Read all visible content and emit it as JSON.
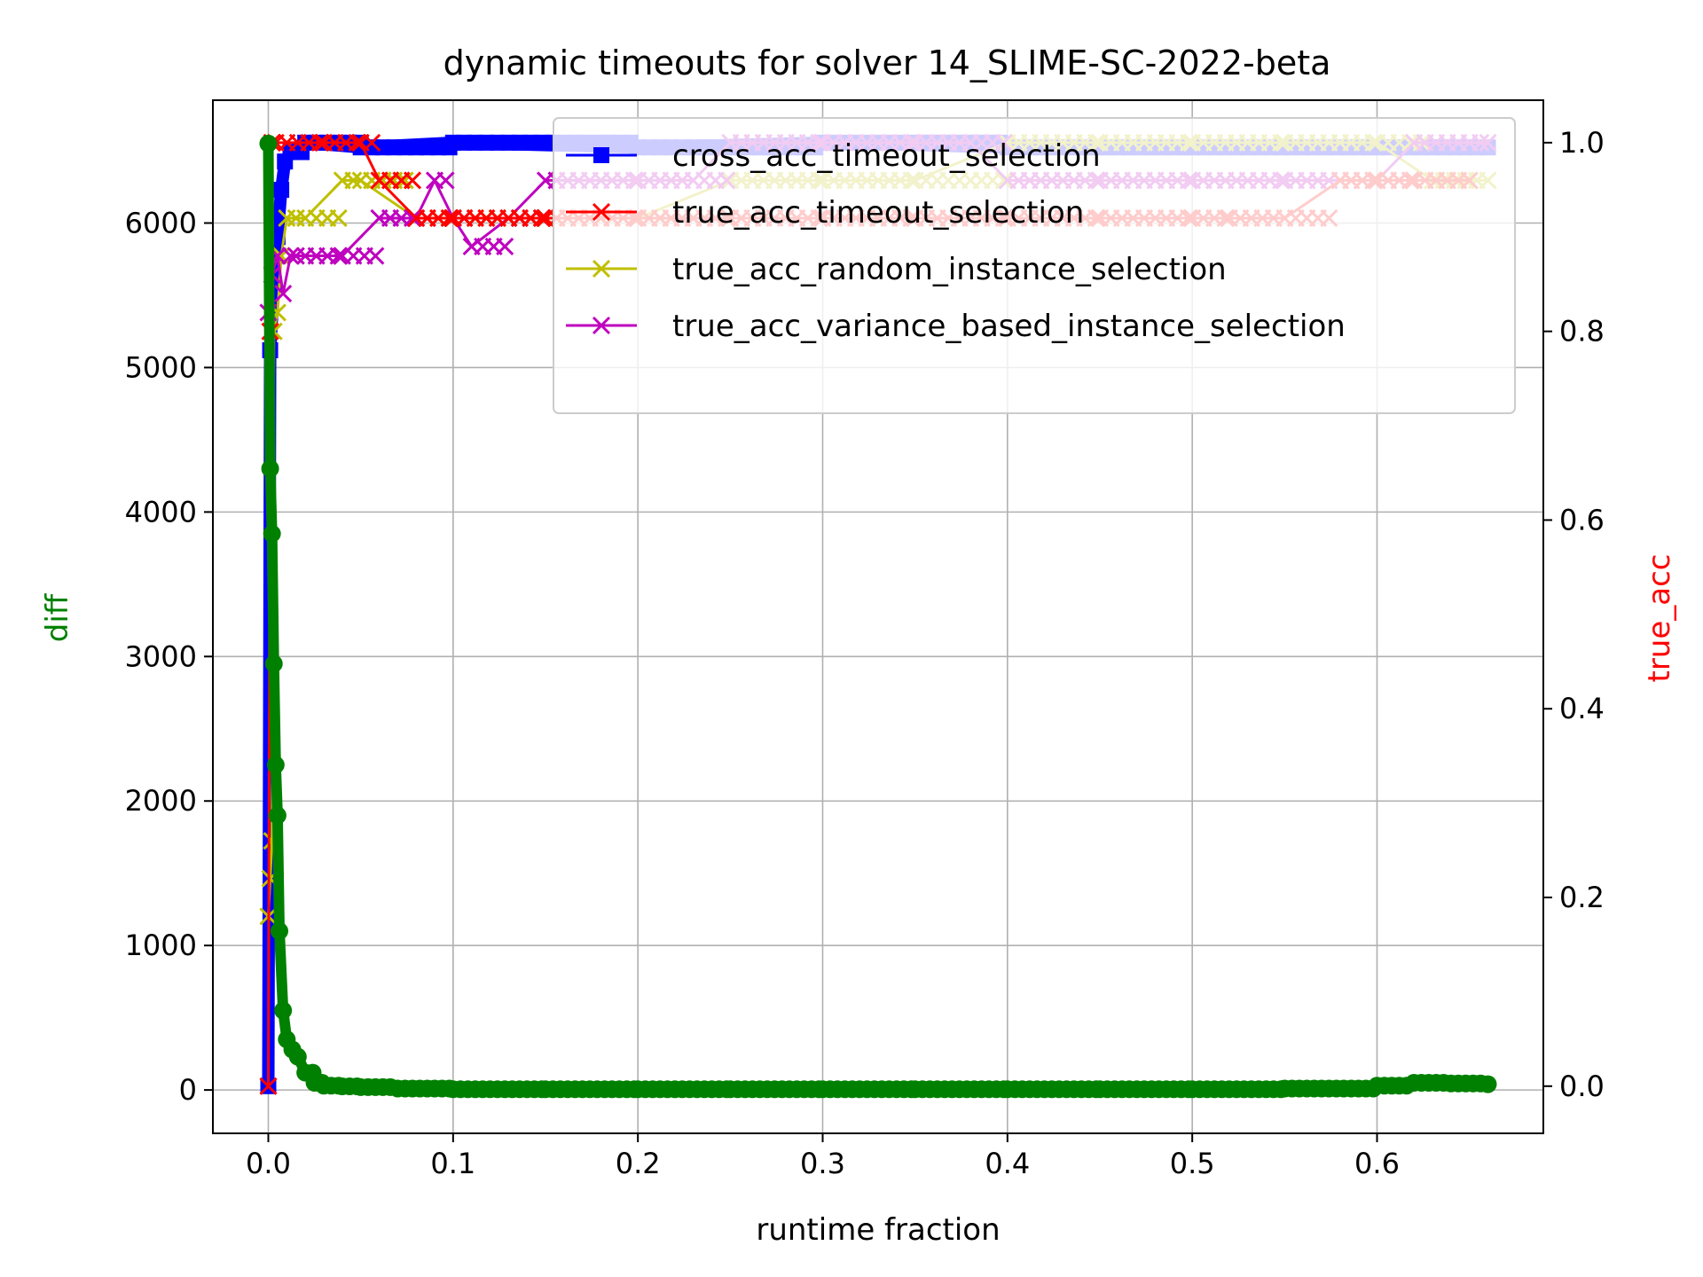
{
  "chart_data": {
    "type": "line",
    "title": "dynamic timeouts for solver 14_SLIME-SC-2022-beta",
    "xlabel": "runtime fraction",
    "ylabel_left": "diff",
    "ylabel_right": "true_acc",
    "xlim": [
      -0.03,
      0.69
    ],
    "ylim_left": [
      -300,
      6850
    ],
    "ylim_right": [
      -0.05,
      1.045
    ],
    "x_ticks": [
      "0.0",
      "0.1",
      "0.2",
      "0.3",
      "0.4",
      "0.5",
      "0.6"
    ],
    "y_left_ticks": [
      "0",
      "1000",
      "2000",
      "3000",
      "4000",
      "5000",
      "6000"
    ],
    "y_right_ticks": [
      "0.0",
      "0.2",
      "0.4",
      "0.6",
      "0.8",
      "1.0"
    ],
    "grid": true,
    "legend": {
      "placement": "upper right",
      "entries": [
        {
          "label": "cross_acc_timeout_selection",
          "color": "#0000ff",
          "marker": "square"
        },
        {
          "label": "true_acc_timeout_selection",
          "color": "#ff0000",
          "marker": "x"
        },
        {
          "label": "true_acc_random_instance_selection",
          "color": "#bfbf00",
          "marker": "x"
        },
        {
          "label": "true_acc_variance_based_instance_selection",
          "color": "#bf00bf",
          "marker": "x"
        }
      ]
    },
    "series": [
      {
        "name": "diff",
        "axis": "left",
        "color": "#008000",
        "marker": "circle",
        "x": [
          0.0,
          0.001,
          0.002,
          0.003,
          0.004,
          0.005,
          0.006,
          0.008,
          0.01,
          0.013,
          0.016,
          0.02,
          0.025,
          0.03,
          0.04,
          0.05,
          0.07,
          0.1,
          0.15,
          0.2,
          0.25,
          0.3,
          0.35,
          0.4,
          0.45,
          0.5,
          0.55,
          0.6,
          0.62,
          0.64,
          0.66
        ],
        "y": [
          6550,
          4300,
          3850,
          2950,
          2250,
          1900,
          1100,
          550,
          350,
          280,
          230,
          120,
          50,
          30,
          25,
          20,
          10,
          5,
          5,
          5,
          5,
          5,
          5,
          5,
          5,
          5,
          10,
          30,
          50,
          45,
          40
        ]
      },
      {
        "name": "cross_acc_timeout_selection",
        "axis": "right",
        "color": "#0000ff",
        "marker": "square",
        "x": [
          0.0,
          0.001,
          0.003,
          0.005,
          0.007,
          0.009,
          0.012,
          0.02,
          0.05,
          0.1,
          0.2,
          0.3,
          0.4,
          0.5,
          0.6,
          0.66
        ],
        "y": [
          0.0,
          0.78,
          0.85,
          0.9,
          0.95,
          0.98,
          0.99,
          1.0,
          0.995,
          1.0,
          0.995,
          1.0,
          0.995,
          0.995,
          0.995,
          0.995
        ]
      },
      {
        "name": "true_acc_timeout_selection",
        "axis": "right",
        "color": "#ff0000",
        "marker": "x",
        "x": [
          0.0,
          0.001,
          0.002,
          0.004,
          0.01,
          0.03,
          0.05,
          0.06,
          0.08,
          0.1,
          0.15,
          0.2,
          0.25,
          0.3,
          0.35,
          0.4,
          0.45,
          0.5,
          0.52,
          0.55,
          0.58,
          0.6,
          0.62,
          0.65
        ],
        "y": [
          0.0,
          0.8,
          1.0,
          1.0,
          1.0,
          1.0,
          1.0,
          0.96,
          0.92,
          0.92,
          0.92,
          0.92,
          0.92,
          0.92,
          0.92,
          0.92,
          0.92,
          0.92,
          0.92,
          0.92,
          0.96,
          0.96,
          0.96,
          0.96
        ]
      },
      {
        "name": "true_acc_random_instance_selection",
        "axis": "right",
        "color": "#bfbf00",
        "marker": "x",
        "x": [
          0.0,
          0.001,
          0.002,
          0.003,
          0.005,
          0.007,
          0.01,
          0.015,
          0.02,
          0.04,
          0.05,
          0.08,
          0.1,
          0.15,
          0.2,
          0.25,
          0.28,
          0.3,
          0.35,
          0.4,
          0.45,
          0.5,
          0.55,
          0.6,
          0.63,
          0.66
        ],
        "y": [
          0.18,
          0.22,
          0.26,
          0.8,
          0.82,
          0.88,
          0.92,
          0.92,
          0.92,
          0.96,
          0.96,
          0.92,
          0.92,
          0.92,
          0.92,
          0.96,
          0.96,
          0.96,
          0.96,
          1.0,
          1.0,
          1.0,
          1.0,
          1.0,
          0.96,
          0.96
        ]
      },
      {
        "name": "true_acc_variance_based_instance_selection",
        "axis": "right",
        "color": "#bf00bf",
        "marker": "x",
        "x": [
          0.0,
          0.002,
          0.005,
          0.008,
          0.012,
          0.015,
          0.02,
          0.04,
          0.06,
          0.08,
          0.09,
          0.1,
          0.11,
          0.13,
          0.15,
          0.2,
          0.23,
          0.25,
          0.3,
          0.35,
          0.38,
          0.4,
          0.45,
          0.5,
          0.55,
          0.6,
          0.62,
          0.66
        ],
        "y": [
          0.82,
          0.86,
          0.88,
          0.84,
          0.88,
          0.88,
          0.88,
          0.88,
          0.92,
          0.92,
          0.96,
          0.92,
          0.89,
          0.92,
          0.96,
          0.96,
          0.96,
          1.0,
          1.0,
          1.0,
          1.0,
          0.96,
          0.96,
          0.96,
          0.96,
          0.96,
          1.0,
          1.0
        ]
      }
    ]
  }
}
